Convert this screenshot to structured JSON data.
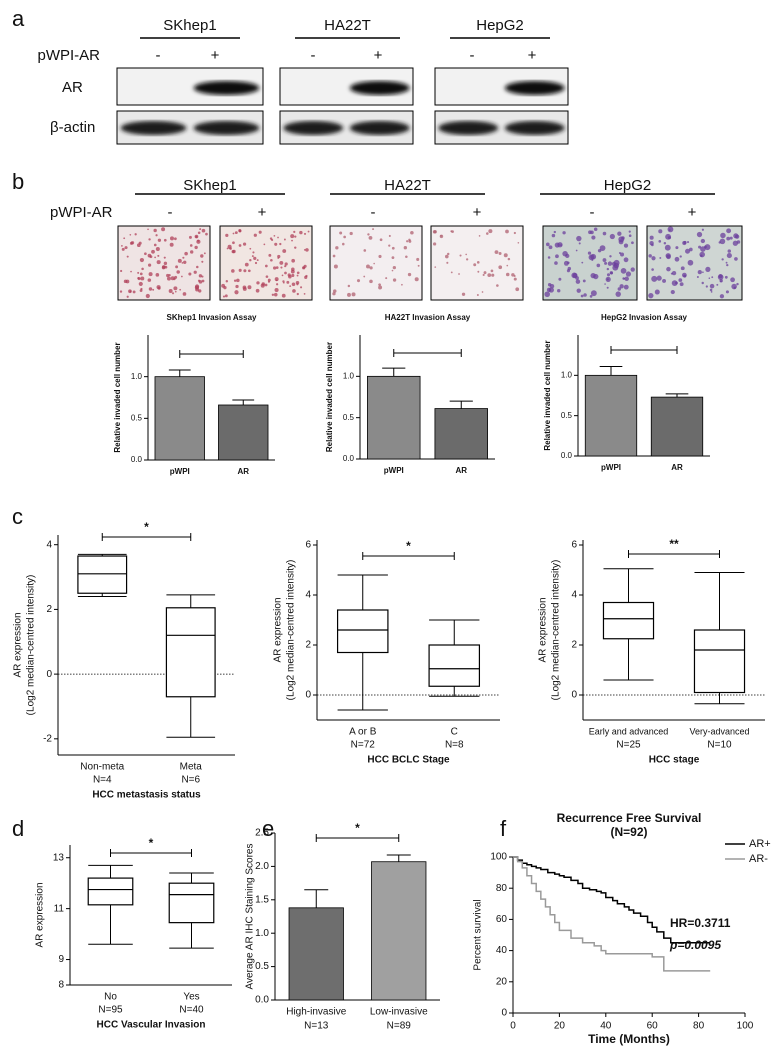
{
  "panel_a": {
    "label": "a",
    "cell_lines": [
      "SKhep1",
      "HA22T",
      "HepG2"
    ],
    "treatment": "pWPI-AR",
    "signs": [
      "-",
      "+"
    ],
    "rows": [
      "AR",
      "β-actin"
    ]
  },
  "panel_b": {
    "label": "b",
    "cell_lines": [
      "SKhep1",
      "HA22T",
      "HepG2"
    ],
    "treatment": "pWPI-AR",
    "signs": [
      "-",
      "+"
    ]
  },
  "panel_labels": [
    "c",
    "d",
    "e",
    "f"
  ],
  "chart_data": [
    {
      "type": "bar",
      "title": "SKhep1 Invasion Assay",
      "ylabel": [
        "Relative invaded cell number"
      ],
      "categories": [
        "pWPI",
        "AR"
      ],
      "values": [
        1.0,
        0.66
      ],
      "errors": [
        0.08,
        0.06
      ],
      "colors": [
        "#8a8a8a",
        "#6b6b6b"
      ],
      "ylim": [
        0,
        1.5
      ],
      "yticks": [
        {
          "value": 0,
          "label": "0.0"
        },
        {
          "value": 0.5,
          "label": "0.5"
        },
        {
          "value": 1,
          "label": "1.0"
        }
      ],
      "significance_bracket": true
    },
    {
      "type": "bar",
      "title": "HA22T Invasion Assay",
      "ylabel": [
        "Relative invaded cell number"
      ],
      "categories": [
        "pWPI",
        "AR"
      ],
      "values": [
        1.0,
        0.61
      ],
      "errors": [
        0.1,
        0.09
      ],
      "colors": [
        "#8a8a8a",
        "#6b6b6b"
      ],
      "ylim": [
        0,
        1.5
      ],
      "yticks": [
        {
          "value": 0,
          "label": "0.0"
        },
        {
          "value": 0.5,
          "label": "0.5"
        },
        {
          "value": 1,
          "label": "1.0"
        }
      ],
      "significance_bracket": true
    },
    {
      "type": "bar",
      "title": "HepG2 Invasion Assay",
      "ylabel": [
        "Relative invaded cell number"
      ],
      "categories": [
        "pWPI",
        "AR"
      ],
      "values": [
        1.0,
        0.73
      ],
      "errors": [
        0.11,
        0.04
      ],
      "colors": [
        "#8a8a8a",
        "#6b6b6b"
      ],
      "ylim": [
        0,
        1.5
      ],
      "yticks": [
        {
          "value": 0,
          "label": "0.0"
        },
        {
          "value": 0.5,
          "label": "0.5"
        },
        {
          "value": 1,
          "label": "1.0"
        }
      ],
      "significance_bracket": true
    },
    {
      "type": "box",
      "ylabel": [
        "AR expression",
        "(Log2 median-centred intensity)"
      ],
      "xlabel": "HCC metastasis status",
      "categories": [
        "Non-meta",
        "Meta"
      ],
      "n_labels": [
        "N=4",
        "N=6"
      ],
      "boxes": [
        {
          "min": 2.4,
          "q1": 2.5,
          "median": 3.1,
          "q3": 3.65,
          "max": 3.7
        },
        {
          "min": -1.95,
          "q1": -0.7,
          "median": 1.2,
          "q3": 2.05,
          "max": 2.45
        }
      ],
      "ylim": [
        -2.5,
        4.3
      ],
      "yticks": [
        -2,
        0,
        2,
        4
      ],
      "reference_line": 0,
      "significance": "*"
    },
    {
      "type": "box",
      "ylabel": [
        "AR expression",
        "(Log2 median-centred intensity)"
      ],
      "xlabel": "HCC BCLC Stage",
      "categories": [
        "A or B",
        "C"
      ],
      "n_labels": [
        "N=72",
        "N=8"
      ],
      "boxes": [
        {
          "min": -0.6,
          "q1": 1.7,
          "median": 2.6,
          "q3": 3.4,
          "max": 4.8
        },
        {
          "min": -0.05,
          "q1": 0.35,
          "median": 1.05,
          "q3": 2.0,
          "max": 3.0
        }
      ],
      "ylim": [
        -1,
        6.2
      ],
      "yticks": [
        0,
        2,
        4,
        6
      ],
      "reference_line": 0,
      "significance": "*"
    },
    {
      "type": "box",
      "ylabel": [
        "AR expression",
        "(Log2 median-centred intensity)"
      ],
      "xlabel": "HCC stage",
      "categories": [
        "Early and advanced",
        "Very-advanced"
      ],
      "n_labels": [
        "N=25",
        "N=10"
      ],
      "boxes": [
        {
          "min": 0.6,
          "q1": 2.25,
          "median": 3.05,
          "q3": 3.7,
          "max": 5.05
        },
        {
          "min": -0.35,
          "q1": 0.1,
          "median": 1.8,
          "q3": 2.6,
          "max": 4.9
        }
      ],
      "ylim": [
        -1,
        6.2
      ],
      "yticks": [
        0,
        2,
        4,
        6
      ],
      "reference_line": 0,
      "significance": "**"
    },
    {
      "type": "box",
      "ylabel": [
        "AR expression"
      ],
      "xlabel": "HCC Vascular Invasion",
      "categories": [
        "No",
        "Yes"
      ],
      "n_labels": [
        "N=95",
        "N=40"
      ],
      "boxes": [
        {
          "min": 9.6,
          "q1": 11.15,
          "median": 11.75,
          "q3": 12.2,
          "max": 12.7
        },
        {
          "min": 9.45,
          "q1": 10.45,
          "median": 11.55,
          "q3": 12.0,
          "max": 12.4
        }
      ],
      "ylim": [
        8,
        13.5
      ],
      "yticks": [
        8,
        9,
        11,
        13
      ],
      "significance": "*"
    },
    {
      "type": "bar",
      "ylabel": [
        "Average AR IHC Staining Scores"
      ],
      "categories": [
        "High-invasive",
        "Low-invasive"
      ],
      "n_labels": [
        "N=13",
        "N=89"
      ],
      "values": [
        1.38,
        2.07
      ],
      "errors": [
        0.27,
        0.1
      ],
      "colors": [
        "#6e6e6e",
        "#a0a0a0"
      ],
      "ylim": [
        0,
        2.5
      ],
      "yticks": [
        {
          "value": 0,
          "label": "0.0"
        },
        {
          "value": 0.5,
          "label": "0.5"
        },
        {
          "value": 1,
          "label": "1.0"
        },
        {
          "value": 1.5,
          "label": "1.5"
        },
        {
          "value": 2,
          "label": "2.0"
        },
        {
          "value": 2.5,
          "label": "2.5"
        }
      ],
      "significance": "*"
    },
    {
      "type": "line",
      "step": true,
      "title": "Recurrence Free Survival",
      "subtitle": "(N=92)",
      "xlabel": "Time (Months)",
      "ylabel": [
        "Percent survival"
      ],
      "legend": "upper right",
      "xlim": [
        0,
        100
      ],
      "ylim": [
        0,
        100
      ],
      "xticks": [
        0,
        20,
        40,
        60,
        80,
        100
      ],
      "yticks": [
        0,
        20,
        40,
        60,
        80,
        100
      ],
      "annotations": [
        "HR=0.3711",
        "p=0.0095"
      ],
      "series": [
        {
          "name": "AR+",
          "color": "#000000",
          "x": [
            0,
            2,
            4,
            6,
            8,
            10,
            12,
            15,
            18,
            20,
            22,
            25,
            28,
            30,
            33,
            36,
            38,
            40,
            43,
            45,
            48,
            50,
            52,
            55,
            58,
            60,
            62,
            65,
            68,
            85
          ],
          "values": [
            100,
            98,
            96,
            95,
            94,
            93,
            92,
            90,
            89,
            88,
            87,
            85,
            83,
            80,
            79,
            78,
            77,
            74,
            72,
            70,
            68,
            66,
            64,
            62,
            58,
            55,
            52,
            48,
            45,
            45
          ]
        },
        {
          "name": "AR-",
          "color": "#9a9a9a",
          "x": [
            0,
            2,
            4,
            6,
            8,
            10,
            12,
            14,
            16,
            18,
            20,
            25,
            30,
            35,
            38,
            40,
            55,
            60,
            65,
            85
          ],
          "values": [
            100,
            97,
            93,
            88,
            83,
            78,
            73,
            68,
            63,
            58,
            53,
            48,
            45,
            43,
            40,
            38,
            38,
            36,
            27,
            27
          ]
        }
      ]
    }
  ]
}
